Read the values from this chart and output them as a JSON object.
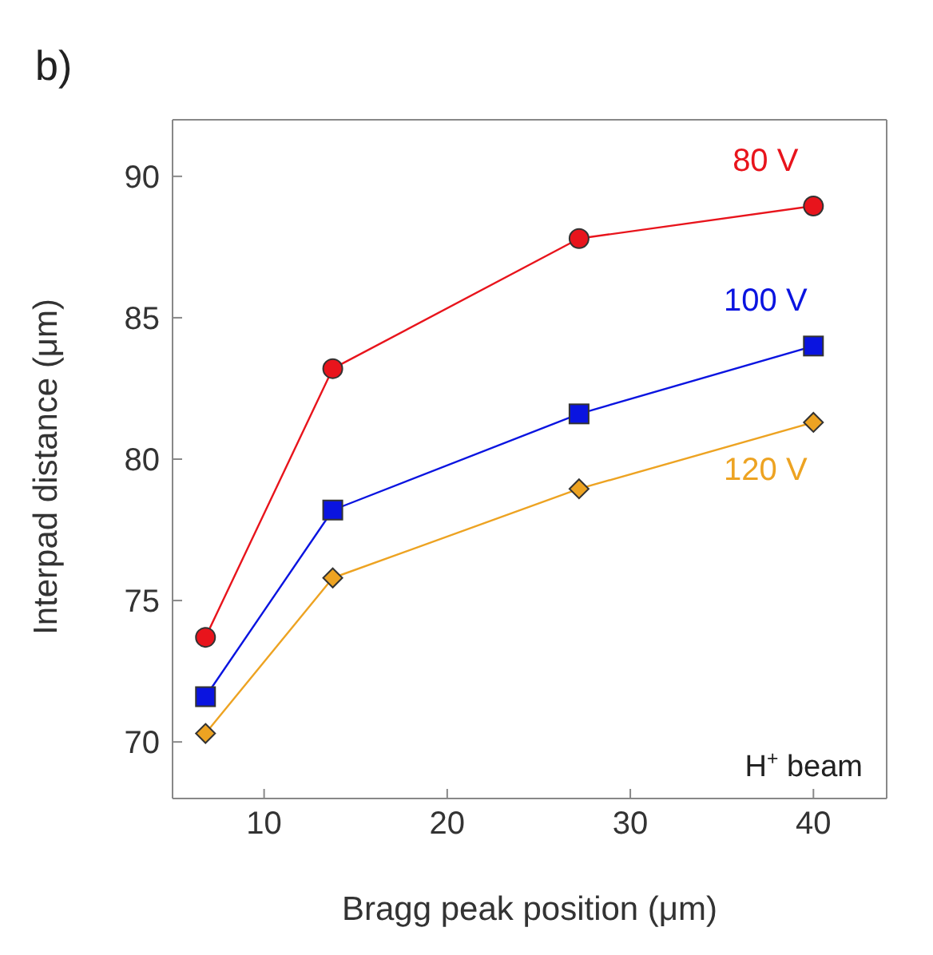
{
  "chart_data": {
    "type": "line",
    "xlabel": "Bragg peak position (μm)",
    "ylabel": "Interpad distance (μm)",
    "x": [
      6.8,
      13.75,
      27.2,
      40
    ],
    "xlim": [
      5,
      44
    ],
    "xticks": [
      10,
      20,
      30,
      40
    ],
    "ylim": [
      68,
      92
    ],
    "yticks": [
      70,
      75,
      80,
      85,
      90
    ],
    "series": [
      {
        "name": "80 V",
        "color": "#e8141c",
        "marker": "circle",
        "values": [
          73.7,
          83.2,
          87.8,
          88.95
        ]
      },
      {
        "name": "100 V",
        "color": "#0a14e0",
        "marker": "square",
        "values": [
          71.6,
          78.2,
          81.6,
          84.0
        ]
      },
      {
        "name": "120 V",
        "color": "#eda322",
        "marker": "diamond",
        "values": [
          70.3,
          75.8,
          78.95,
          81.3
        ]
      }
    ],
    "annotations": [
      "b)",
      "H$^{+}$ beam"
    ]
  }
}
